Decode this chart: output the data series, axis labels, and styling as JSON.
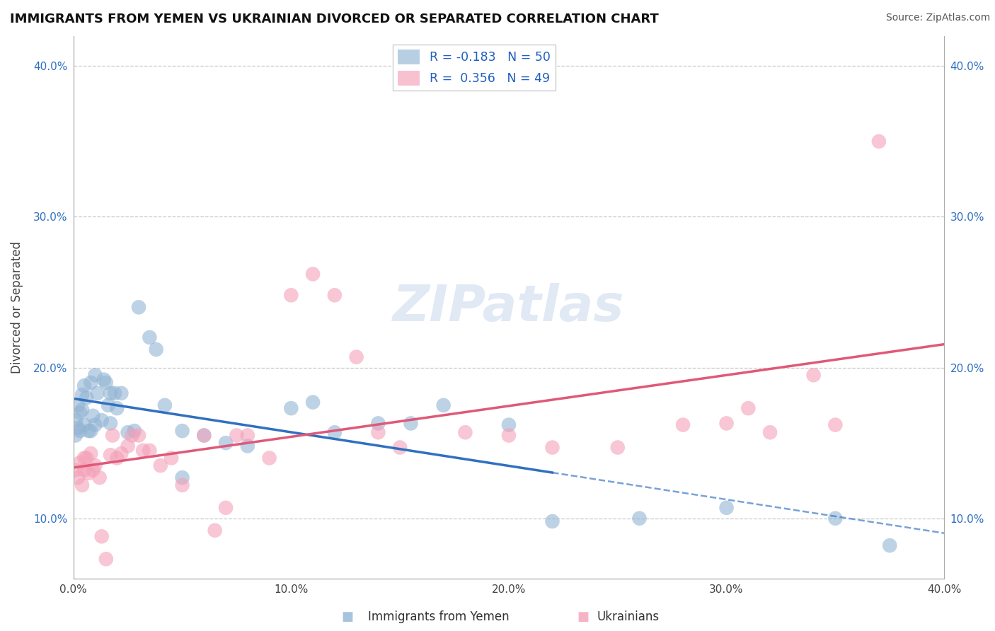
{
  "title": "IMMIGRANTS FROM YEMEN VS UKRAINIAN DIVORCED OR SEPARATED CORRELATION CHART",
  "source": "Source: ZipAtlas.com",
  "ylabel": "Divorced or Separated",
  "xlim": [
    0.0,
    0.4
  ],
  "ylim": [
    0.06,
    0.42
  ],
  "ytick_labels": [
    "10.0%",
    "20.0%",
    "30.0%",
    "40.0%"
  ],
  "ytick_vals": [
    0.1,
    0.2,
    0.3,
    0.4
  ],
  "xtick_labels": [
    "0.0%",
    "10.0%",
    "20.0%",
    "30.0%",
    "40.0%"
  ],
  "xtick_vals": [
    0.0,
    0.1,
    0.2,
    0.3,
    0.4
  ],
  "legend_label_blue": "R = -0.183   N = 50",
  "legend_label_pink": "R =  0.356   N = 49",
  "blue_color": "#92b4d4",
  "pink_color": "#f4a0b8",
  "blue_line_color": "#3070c0",
  "pink_line_color": "#e05878",
  "blue_scatter": [
    [
      0.001,
      0.155
    ],
    [
      0.001,
      0.165
    ],
    [
      0.002,
      0.175
    ],
    [
      0.002,
      0.16
    ],
    [
      0.003,
      0.17
    ],
    [
      0.003,
      0.158
    ],
    [
      0.004,
      0.172
    ],
    [
      0.004,
      0.182
    ],
    [
      0.005,
      0.188
    ],
    [
      0.005,
      0.162
    ],
    [
      0.006,
      0.18
    ],
    [
      0.007,
      0.158
    ],
    [
      0.008,
      0.158
    ],
    [
      0.008,
      0.19
    ],
    [
      0.009,
      0.168
    ],
    [
      0.01,
      0.195
    ],
    [
      0.01,
      0.162
    ],
    [
      0.011,
      0.183
    ],
    [
      0.013,
      0.165
    ],
    [
      0.014,
      0.192
    ],
    [
      0.015,
      0.19
    ],
    [
      0.016,
      0.175
    ],
    [
      0.017,
      0.183
    ],
    [
      0.017,
      0.163
    ],
    [
      0.019,
      0.183
    ],
    [
      0.02,
      0.173
    ],
    [
      0.022,
      0.183
    ],
    [
      0.025,
      0.157
    ],
    [
      0.028,
      0.158
    ],
    [
      0.03,
      0.24
    ],
    [
      0.035,
      0.22
    ],
    [
      0.038,
      0.212
    ],
    [
      0.042,
      0.175
    ],
    [
      0.05,
      0.127
    ],
    [
      0.05,
      0.158
    ],
    [
      0.06,
      0.155
    ],
    [
      0.07,
      0.15
    ],
    [
      0.08,
      0.148
    ],
    [
      0.1,
      0.173
    ],
    [
      0.11,
      0.177
    ],
    [
      0.12,
      0.157
    ],
    [
      0.14,
      0.163
    ],
    [
      0.155,
      0.163
    ],
    [
      0.17,
      0.175
    ],
    [
      0.2,
      0.162
    ],
    [
      0.22,
      0.098
    ],
    [
      0.26,
      0.1
    ],
    [
      0.3,
      0.107
    ],
    [
      0.35,
      0.1
    ],
    [
      0.375,
      0.082
    ]
  ],
  "pink_scatter": [
    [
      0.001,
      0.132
    ],
    [
      0.002,
      0.127
    ],
    [
      0.003,
      0.137
    ],
    [
      0.004,
      0.122
    ],
    [
      0.005,
      0.14
    ],
    [
      0.005,
      0.132
    ],
    [
      0.006,
      0.14
    ],
    [
      0.007,
      0.13
    ],
    [
      0.008,
      0.143
    ],
    [
      0.009,
      0.132
    ],
    [
      0.01,
      0.135
    ],
    [
      0.012,
      0.127
    ],
    [
      0.013,
      0.088
    ],
    [
      0.015,
      0.073
    ],
    [
      0.017,
      0.142
    ],
    [
      0.018,
      0.155
    ],
    [
      0.02,
      0.14
    ],
    [
      0.022,
      0.143
    ],
    [
      0.025,
      0.148
    ],
    [
      0.027,
      0.155
    ],
    [
      0.03,
      0.155
    ],
    [
      0.032,
      0.145
    ],
    [
      0.035,
      0.145
    ],
    [
      0.04,
      0.135
    ],
    [
      0.045,
      0.14
    ],
    [
      0.05,
      0.122
    ],
    [
      0.06,
      0.155
    ],
    [
      0.065,
      0.092
    ],
    [
      0.07,
      0.107
    ],
    [
      0.075,
      0.155
    ],
    [
      0.08,
      0.155
    ],
    [
      0.09,
      0.14
    ],
    [
      0.1,
      0.248
    ],
    [
      0.11,
      0.262
    ],
    [
      0.12,
      0.248
    ],
    [
      0.13,
      0.207
    ],
    [
      0.14,
      0.157
    ],
    [
      0.15,
      0.147
    ],
    [
      0.18,
      0.157
    ],
    [
      0.2,
      0.155
    ],
    [
      0.22,
      0.147
    ],
    [
      0.25,
      0.147
    ],
    [
      0.28,
      0.162
    ],
    [
      0.3,
      0.163
    ],
    [
      0.31,
      0.173
    ],
    [
      0.32,
      0.157
    ],
    [
      0.34,
      0.195
    ],
    [
      0.35,
      0.162
    ],
    [
      0.37,
      0.35
    ]
  ],
  "watermark_text": "ZIPatlas",
  "background_color": "#ffffff",
  "grid_color": "#c8c8c8"
}
